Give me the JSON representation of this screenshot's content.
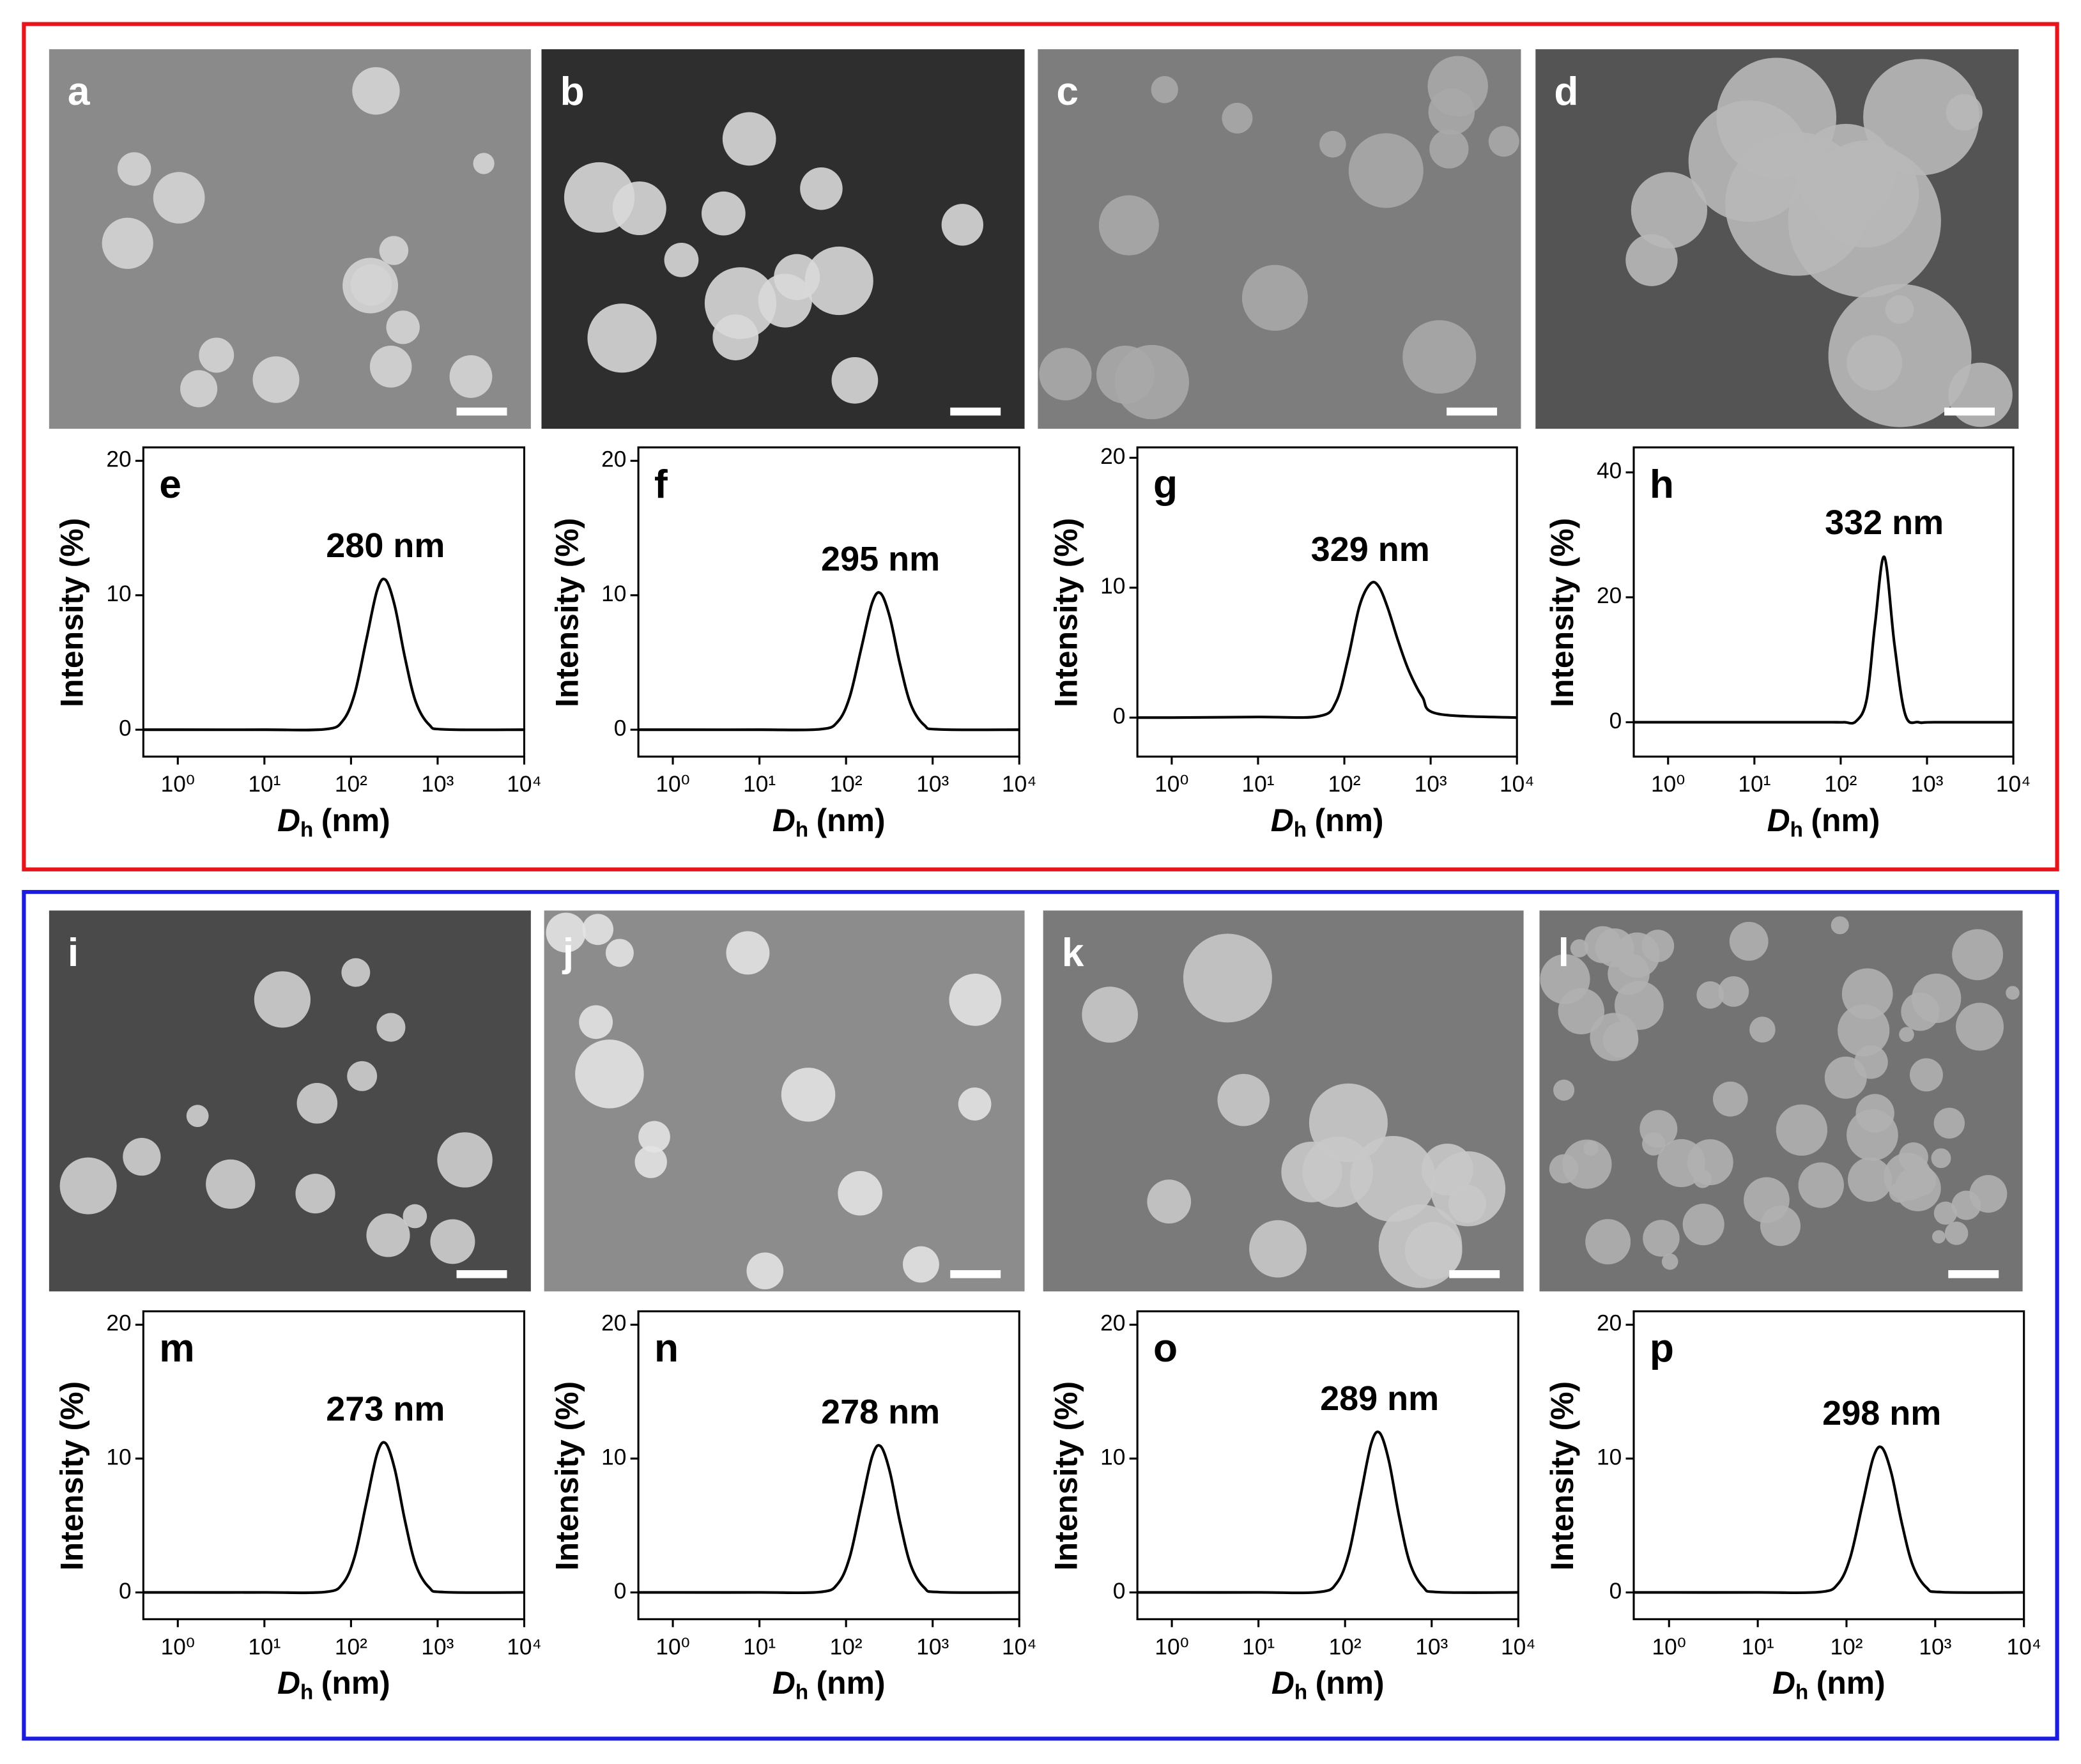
{
  "images": [
    {
      "label": "a"
    },
    {
      "label": "b"
    },
    {
      "label": "c"
    },
    {
      "label": "d"
    },
    {
      "label": "i"
    },
    {
      "label": "j"
    },
    {
      "label": "k"
    },
    {
      "label": "l"
    }
  ],
  "chart_data": [
    {
      "type": "line",
      "label": "e",
      "annotation": "280 nm",
      "ylabel": "Intensity (%)",
      "xlabel_symbol": "D",
      "xlabel_subscript": "h",
      "xlabel_unit": "(nm)",
      "color": "#000000",
      "xscale": "log",
      "x": [
        0.4,
        1,
        10,
        50,
        80,
        110,
        150,
        200,
        250,
        320,
        420,
        560,
        800,
        1200,
        10000
      ],
      "values": [
        0,
        0,
        0,
        0.03,
        0.65,
        2.66,
        6.66,
        10.36,
        11.15,
        9.21,
        5.35,
        2.06,
        0.37,
        0.02,
        0
      ],
      "xlim": [
        0.4,
        10000
      ],
      "xticks": [
        {
          "value": 1,
          "label": "10⁰"
        },
        {
          "value": 10,
          "label": "10¹"
        },
        {
          "value": 100,
          "label": "10²"
        },
        {
          "value": 1000,
          "label": "10³"
        },
        {
          "value": 10000,
          "label": "10⁴"
        }
      ],
      "ylim": [
        -2,
        21
      ],
      "yticks": [
        0,
        10,
        20
      ]
    },
    {
      "type": "line",
      "label": "f",
      "annotation": "295 nm",
      "ylabel": "Intensity (%)",
      "xlabel_symbol": "D",
      "xlabel_subscript": "h",
      "xlabel_unit": "(nm)",
      "color": "#000000",
      "xscale": "log",
      "x": [
        0.4,
        1,
        10,
        50,
        80,
        110,
        150,
        200,
        250,
        320,
        420,
        560,
        800,
        1200,
        10000
      ],
      "values": [
        0,
        0,
        0,
        0.03,
        0.59,
        2.42,
        6.06,
        9.43,
        10.15,
        8.38,
        4.87,
        1.87,
        0.34,
        0.02,
        0
      ],
      "xlim": [
        0.4,
        10000
      ],
      "xticks": [
        {
          "value": 1,
          "label": "10⁰"
        },
        {
          "value": 10,
          "label": "10¹"
        },
        {
          "value": 100,
          "label": "10²"
        },
        {
          "value": 1000,
          "label": "10³"
        },
        {
          "value": 10000,
          "label": "10⁴"
        }
      ],
      "ylim": [
        -2,
        21
      ],
      "yticks": [
        0,
        10,
        20
      ]
    },
    {
      "type": "line",
      "label": "g",
      "annotation": "329 nm",
      "ylabel": "Intensity (%)",
      "xlabel_symbol": "D",
      "xlabel_subscript": "h",
      "xlabel_unit": "(nm)",
      "color": "#000000",
      "xscale": "log",
      "x": [
        0.4,
        1,
        10,
        50,
        80,
        110,
        150,
        200,
        250,
        320,
        420,
        560,
        800,
        1200,
        10000
      ],
      "values": [
        0,
        0,
        0.05,
        0.1,
        1.2,
        4.5,
        8.6,
        10.3,
        10.1,
        8.4,
        5.9,
        3.6,
        1.6,
        0.3,
        0
      ],
      "xlim": [
        0.4,
        10000
      ],
      "xticks": [
        {
          "value": 1,
          "label": "10⁰"
        },
        {
          "value": 10,
          "label": "10¹"
        },
        {
          "value": 100,
          "label": "10²"
        },
        {
          "value": 1000,
          "label": "10³"
        },
        {
          "value": 10000,
          "label": "10⁴"
        }
      ],
      "ylim": [
        -3,
        20.8
      ],
      "yticks": [
        0,
        10,
        20
      ]
    },
    {
      "type": "line",
      "label": "h",
      "annotation": "332 nm",
      "ylabel": "Intensity (%)",
      "xlabel_symbol": "D",
      "xlabel_subscript": "h",
      "xlabel_unit": "(nm)",
      "color": "#000000",
      "xscale": "log",
      "x": [
        0.4,
        1,
        10,
        50,
        80,
        110,
        150,
        200,
        250,
        320,
        420,
        560,
        800,
        1200,
        10000
      ],
      "values": [
        0,
        0,
        0,
        0,
        0,
        0,
        0.14,
        3.66,
        15.7,
        26.47,
        12.4,
        1.22,
        0,
        0,
        0
      ],
      "xlim": [
        0.4,
        10000
      ],
      "xticks": [
        {
          "value": 1,
          "label": "10⁰"
        },
        {
          "value": 10,
          "label": "10¹"
        },
        {
          "value": 100,
          "label": "10²"
        },
        {
          "value": 1000,
          "label": "10³"
        },
        {
          "value": 10000,
          "label": "10⁴"
        }
      ],
      "ylim": [
        -5.5,
        44
      ],
      "yticks": [
        0,
        20,
        40
      ]
    },
    {
      "type": "line",
      "label": "m",
      "annotation": "273 nm",
      "ylabel": "Intensity (%)",
      "xlabel_symbol": "D",
      "xlabel_subscript": "h",
      "xlabel_unit": "(nm)",
      "color": "#000000",
      "xscale": "log",
      "x": [
        0.4,
        1,
        10,
        50,
        80,
        110,
        150,
        200,
        250,
        320,
        420,
        560,
        800,
        1200,
        10000
      ],
      "values": [
        0,
        0,
        0,
        0.03,
        0.65,
        2.66,
        6.66,
        10.36,
        11.15,
        9.21,
        5.35,
        2.06,
        0.37,
        0.02,
        0
      ],
      "xlim": [
        0.4,
        10000
      ],
      "xticks": [
        {
          "value": 1,
          "label": "10⁰"
        },
        {
          "value": 10,
          "label": "10¹"
        },
        {
          "value": 100,
          "label": "10²"
        },
        {
          "value": 1000,
          "label": "10³"
        },
        {
          "value": 10000,
          "label": "10⁴"
        }
      ],
      "ylim": [
        -2,
        21
      ],
      "yticks": [
        0,
        10,
        20
      ]
    },
    {
      "type": "line",
      "label": "n",
      "annotation": "278 nm",
      "ylabel": "Intensity (%)",
      "xlabel_symbol": "D",
      "xlabel_subscript": "h",
      "xlabel_unit": "(nm)",
      "color": "#000000",
      "xscale": "log",
      "x": [
        0.4,
        1,
        10,
        50,
        80,
        110,
        150,
        200,
        250,
        320,
        420,
        560,
        800,
        1200,
        10000
      ],
      "values": [
        0,
        0,
        0,
        0.03,
        0.64,
        2.61,
        6.53,
        10.15,
        10.93,
        9.03,
        5.24,
        2.02,
        0.36,
        0.02,
        0
      ],
      "xlim": [
        0.4,
        10000
      ],
      "xticks": [
        {
          "value": 1,
          "label": "10⁰"
        },
        {
          "value": 10,
          "label": "10¹"
        },
        {
          "value": 100,
          "label": "10²"
        },
        {
          "value": 1000,
          "label": "10³"
        },
        {
          "value": 10000,
          "label": "10⁴"
        }
      ],
      "ylim": [
        -2,
        21
      ],
      "yticks": [
        0,
        10,
        20
      ]
    },
    {
      "type": "line",
      "label": "o",
      "annotation": "289 nm",
      "ylabel": "Intensity (%)",
      "xlabel_symbol": "D",
      "xlabel_subscript": "h",
      "xlabel_unit": "(nm)",
      "color": "#000000",
      "xscale": "log",
      "x": [
        0.4,
        1,
        10,
        50,
        80,
        110,
        150,
        200,
        250,
        320,
        420,
        560,
        800,
        1200,
        10000
      ],
      "values": [
        0,
        0,
        0,
        0.03,
        0.7,
        2.85,
        7.13,
        11.09,
        11.93,
        9.85,
        5.72,
        2.2,
        0.4,
        0.02,
        0
      ],
      "xlim": [
        0.4,
        10000
      ],
      "xticks": [
        {
          "value": 1,
          "label": "10⁰"
        },
        {
          "value": 10,
          "label": "10¹"
        },
        {
          "value": 100,
          "label": "10²"
        },
        {
          "value": 1000,
          "label": "10³"
        },
        {
          "value": 10000,
          "label": "10⁴"
        }
      ],
      "ylim": [
        -2,
        21
      ],
      "yticks": [
        0,
        10,
        20
      ]
    },
    {
      "type": "line",
      "label": "p",
      "annotation": "298 nm",
      "ylabel": "Intensity (%)",
      "xlabel_symbol": "D",
      "xlabel_subscript": "h",
      "xlabel_unit": "(nm)",
      "color": "#000000",
      "xscale": "log",
      "x": [
        0.4,
        1,
        10,
        50,
        80,
        110,
        150,
        200,
        250,
        320,
        420,
        560,
        800,
        1200,
        10000
      ],
      "values": [
        0,
        0,
        0,
        0.03,
        0.63,
        2.58,
        6.46,
        10.05,
        10.82,
        8.93,
        5.19,
        2.0,
        0.36,
        0.02,
        0
      ],
      "xlim": [
        0.4,
        10000
      ],
      "xticks": [
        {
          "value": 1,
          "label": "10⁰"
        },
        {
          "value": 10,
          "label": "10¹"
        },
        {
          "value": 100,
          "label": "10²"
        },
        {
          "value": 1000,
          "label": "10³"
        },
        {
          "value": 10000,
          "label": "10⁴"
        }
      ],
      "ylim": [
        -2,
        21
      ],
      "yticks": [
        0,
        10,
        20
      ]
    }
  ]
}
